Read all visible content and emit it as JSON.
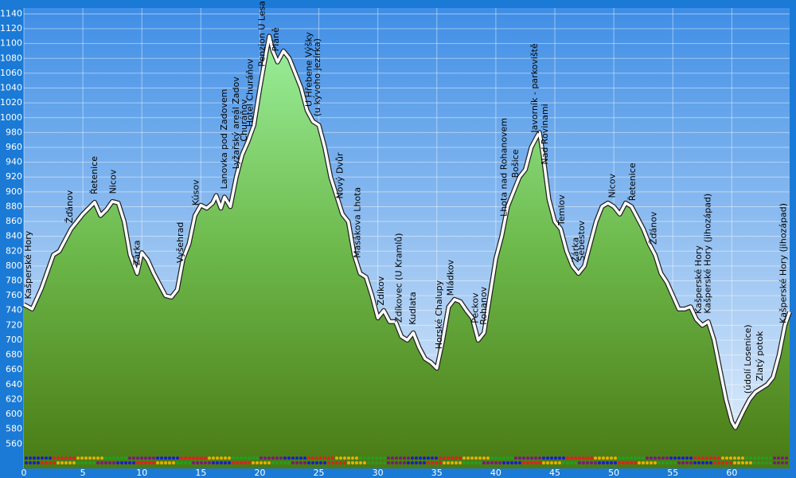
{
  "chart_data": {
    "type": "area",
    "x": [
      0,
      0.7,
      1.5,
      2.5,
      3,
      4,
      5,
      6,
      6.5,
      7,
      7.5,
      8,
      8.5,
      9,
      9.6,
      10,
      10.5,
      11,
      12,
      12.5,
      13,
      13.5,
      14,
      14.5,
      15,
      15.5,
      16,
      16.3,
      16.7,
      17,
      17.5,
      18,
      18.5,
      19,
      19.5,
      20,
      20.5,
      20.8,
      21.1,
      21.5,
      22,
      22.5,
      23,
      23.5,
      24,
      24.5,
      25,
      25.5,
      26,
      26.5,
      27,
      27.5,
      28,
      28.5,
      29,
      29.5,
      30,
      30.5,
      31,
      31.5,
      32,
      32.5,
      33,
      33.5,
      34,
      34.5,
      35,
      35.5,
      36,
      36.5,
      37,
      37.5,
      38,
      38.5,
      39,
      39.5,
      40,
      40.5,
      41,
      41.5,
      42,
      42.5,
      43,
      43.5,
      43.7,
      44,
      44.5,
      45,
      45.5,
      46,
      46.5,
      47,
      47.5,
      48,
      48.5,
      49,
      49.5,
      50,
      50.5,
      51,
      51.5,
      52,
      52.5,
      53,
      53.5,
      54,
      54.5,
      55,
      55.5,
      56,
      56.5,
      57,
      57.5,
      58,
      58.5,
      59,
      59.5,
      60,
      60.3,
      61,
      61.5,
      62,
      63,
      63.5,
      64,
      64.5,
      64.9
    ],
    "values": [
      748,
      742,
      770,
      815,
      820,
      850,
      870,
      886,
      868,
      876,
      887,
      885,
      860,
      815,
      790,
      818,
      808,
      790,
      760,
      758,
      768,
      810,
      830,
      868,
      882,
      878,
      885,
      895,
      878,
      893,
      880,
      920,
      950,
      968,
      990,
      1040,
      1085,
      1110,
      1090,
      1075,
      1090,
      1080,
      1060,
      1040,
      1010,
      995,
      990,
      960,
      920,
      895,
      870,
      860,
      815,
      790,
      785,
      760,
      730,
      740,
      725,
      725,
      705,
      700,
      710,
      690,
      675,
      670,
      662,
      700,
      745,
      755,
      752,
      740,
      730,
      700,
      710,
      760,
      810,
      840,
      880,
      900,
      920,
      930,
      960,
      975,
      980,
      950,
      890,
      860,
      850,
      820,
      800,
      790,
      800,
      830,
      860,
      880,
      885,
      880,
      870,
      885,
      880,
      865,
      850,
      830,
      815,
      790,
      778,
      760,
      742,
      742,
      745,
      728,
      720,
      725,
      700,
      660,
      620,
      590,
      582,
      605,
      620,
      630,
      640,
      650,
      680,
      720,
      738
    ],
    "xlim": [
      0,
      64.9
    ],
    "ylim": [
      527,
      1148
    ],
    "xticks": [
      0,
      5,
      10,
      15,
      20,
      25,
      30,
      35,
      40,
      45,
      50,
      55,
      60
    ],
    "yticks": [
      560,
      580,
      600,
      620,
      640,
      660,
      680,
      700,
      720,
      740,
      760,
      780,
      800,
      820,
      840,
      860,
      880,
      900,
      920,
      940,
      960,
      980,
      1000,
      1020,
      1040,
      1060,
      1080,
      1100,
      1120,
      1140
    ],
    "grid": true,
    "waypoints": [
      {
        "label": "Kašperské Hory",
        "x": 0.4
      },
      {
        "label": "Žďánov",
        "x": 3.9
      },
      {
        "label": "Řetenice",
        "x": 6.0
      },
      {
        "label": "Nicov",
        "x": 7.6
      },
      {
        "label": "Zárka",
        "x": 9.6
      },
      {
        "label": "Vyšehrad",
        "x": 13.3
      },
      {
        "label": "Kúsov",
        "x": 14.6
      },
      {
        "label": "Lanovka pod Zadovem",
        "x": 17.0
      },
      {
        "label": "Lyžařský areál Zadov",
        "x": 18.0
      },
      {
        "label": "Churáňov",
        "x": 18.7
      },
      {
        "label": "Hotel Churáňov",
        "x": 19.2
      },
      {
        "label": "Penzion U Lesa",
        "x": 20.2
      },
      {
        "label": "Pláně",
        "x": 21.4
      },
      {
        "label": "U Hřebene Výšky",
        "x": 24.2
      },
      {
        "label": "(u kývoho jezírka)",
        "x": 24.9
      },
      {
        "label": "Nový Dvůr",
        "x": 26.8
      },
      {
        "label": "Masákova Lhota",
        "x": 28.3
      },
      {
        "label": "Zdíkov",
        "x": 30.3
      },
      {
        "label": "Zdíkovec (U Kramlů)",
        "x": 31.8
      },
      {
        "label": "Kudlata",
        "x": 33.0
      },
      {
        "label": "Horské Chalupy",
        "x": 35.2
      },
      {
        "label": "Mládkov",
        "x": 36.2
      },
      {
        "label": "Peckov",
        "x": 38.3
      },
      {
        "label": "Rohanov",
        "x": 39.0
      },
      {
        "label": "Lhota nad Rohanovem",
        "x": 40.7
      },
      {
        "label": "Bošice",
        "x": 41.7
      },
      {
        "label": "Javorník - parkoviště",
        "x": 43.3
      },
      {
        "label": "Nad Rovinami",
        "x": 44.2
      },
      {
        "label": "Temlov",
        "x": 45.6
      },
      {
        "label": "Zárka",
        "x": 46.8
      },
      {
        "label": "Šebestov",
        "x": 47.3
      },
      {
        "label": "Nicov",
        "x": 49.9
      },
      {
        "label": "Řetenice",
        "x": 51.6
      },
      {
        "label": "Žďánov",
        "x": 53.4
      },
      {
        "label": "Kašperské Hory",
        "x": 57.2
      },
      {
        "label": "Kašperské Hory (jihozápad)",
        "x": 58.0
      },
      {
        "label": "(údolí Losenice)",
        "x": 61.4
      },
      {
        "label": "Zlatý potok",
        "x": 62.4
      },
      {
        "label": "Kašperské Hory (jihozápad)",
        "x": 64.4
      }
    ]
  }
}
